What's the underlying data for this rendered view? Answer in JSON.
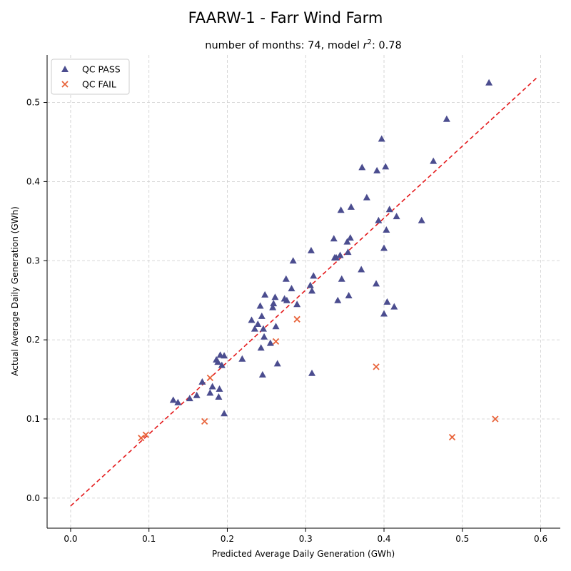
{
  "figure": {
    "suptitle": "FAARW-1 - Farr Wind Farm",
    "subtitle_prefix": "number of months: 74, model ",
    "subtitle_r": "r",
    "subtitle_sup": "2",
    "subtitle_suffix": ": 0.78"
  },
  "chart_data": {
    "type": "scatter",
    "xlabel": "Predicted Average Daily Generation (GWh)",
    "ylabel": "Actual Average Daily Generation (GWh)",
    "xlim": [
      -0.03,
      0.625
    ],
    "ylim": [
      -0.038,
      0.56
    ],
    "xticks": [
      0.0,
      0.1,
      0.2,
      0.3,
      0.4,
      0.5,
      0.6
    ],
    "xtick_labels": [
      "0.0",
      "0.1",
      "0.2",
      "0.3",
      "0.4",
      "0.5",
      "0.6"
    ],
    "yticks": [
      0.0,
      0.1,
      0.2,
      0.3,
      0.4,
      0.5
    ],
    "ytick_labels": [
      "0.0",
      "0.1",
      "0.2",
      "0.3",
      "0.4",
      "0.5"
    ],
    "grid": true,
    "legend_position": "top-left",
    "series": [
      {
        "name": "QC PASS",
        "marker": "triangle",
        "color": "#4b4d8f",
        "points": [
          [
            0.131,
            0.124
          ],
          [
            0.137,
            0.121
          ],
          [
            0.152,
            0.126
          ],
          [
            0.161,
            0.13
          ],
          [
            0.168,
            0.147
          ],
          [
            0.178,
            0.133
          ],
          [
            0.181,
            0.141
          ],
          [
            0.186,
            0.175
          ],
          [
            0.188,
            0.172
          ],
          [
            0.19,
            0.138
          ],
          [
            0.189,
            0.128
          ],
          [
            0.191,
            0.181
          ],
          [
            0.193,
            0.168
          ],
          [
            0.196,
            0.18
          ],
          [
            0.196,
            0.107
          ],
          [
            0.219,
            0.176
          ],
          [
            0.231,
            0.225
          ],
          [
            0.235,
            0.214
          ],
          [
            0.239,
            0.22
          ],
          [
            0.242,
            0.243
          ],
          [
            0.243,
            0.19
          ],
          [
            0.244,
            0.23
          ],
          [
            0.245,
            0.156
          ],
          [
            0.246,
            0.214
          ],
          [
            0.247,
            0.204
          ],
          [
            0.248,
            0.257
          ],
          [
            0.255,
            0.196
          ],
          [
            0.258,
            0.241
          ],
          [
            0.259,
            0.246
          ],
          [
            0.261,
            0.254
          ],
          [
            0.262,
            0.217
          ],
          [
            0.264,
            0.17
          ],
          [
            0.273,
            0.252
          ],
          [
            0.275,
            0.277
          ],
          [
            0.276,
            0.25
          ],
          [
            0.282,
            0.265
          ],
          [
            0.284,
            0.3
          ],
          [
            0.289,
            0.245
          ],
          [
            0.306,
            0.269
          ],
          [
            0.307,
            0.313
          ],
          [
            0.308,
            0.262
          ],
          [
            0.308,
            0.158
          ],
          [
            0.31,
            0.281
          ],
          [
            0.336,
            0.328
          ],
          [
            0.337,
            0.304
          ],
          [
            0.339,
            0.304
          ],
          [
            0.341,
            0.25
          ],
          [
            0.344,
            0.307
          ],
          [
            0.345,
            0.364
          ],
          [
            0.346,
            0.277
          ],
          [
            0.353,
            0.324
          ],
          [
            0.354,
            0.311
          ],
          [
            0.355,
            0.256
          ],
          [
            0.357,
            0.329
          ],
          [
            0.358,
            0.368
          ],
          [
            0.372,
            0.418
          ],
          [
            0.371,
            0.289
          ],
          [
            0.378,
            0.38
          ],
          [
            0.39,
            0.271
          ],
          [
            0.391,
            0.414
          ],
          [
            0.393,
            0.351
          ],
          [
            0.397,
            0.454
          ],
          [
            0.4,
            0.316
          ],
          [
            0.4,
            0.233
          ],
          [
            0.402,
            0.419
          ],
          [
            0.403,
            0.339
          ],
          [
            0.404,
            0.248
          ],
          [
            0.407,
            0.365
          ],
          [
            0.413,
            0.242
          ],
          [
            0.416,
            0.356
          ],
          [
            0.448,
            0.351
          ],
          [
            0.463,
            0.426
          ],
          [
            0.48,
            0.479
          ],
          [
            0.534,
            0.525
          ]
        ]
      },
      {
        "name": "QC FAIL",
        "marker": "x",
        "color": "#e8633a",
        "points": [
          [
            0.09,
            0.076
          ],
          [
            0.096,
            0.08
          ],
          [
            0.171,
            0.097
          ],
          [
            0.178,
            0.152
          ],
          [
            0.262,
            0.198
          ],
          [
            0.289,
            0.226
          ],
          [
            0.39,
            0.166
          ],
          [
            0.487,
            0.077
          ],
          [
            0.542,
            0.1
          ]
        ]
      }
    ],
    "fit_line": {
      "color": "#e41a1c",
      "style": "dashed",
      "points": [
        [
          0.0,
          -0.01
        ],
        [
          0.597,
          0.533
        ]
      ]
    }
  }
}
